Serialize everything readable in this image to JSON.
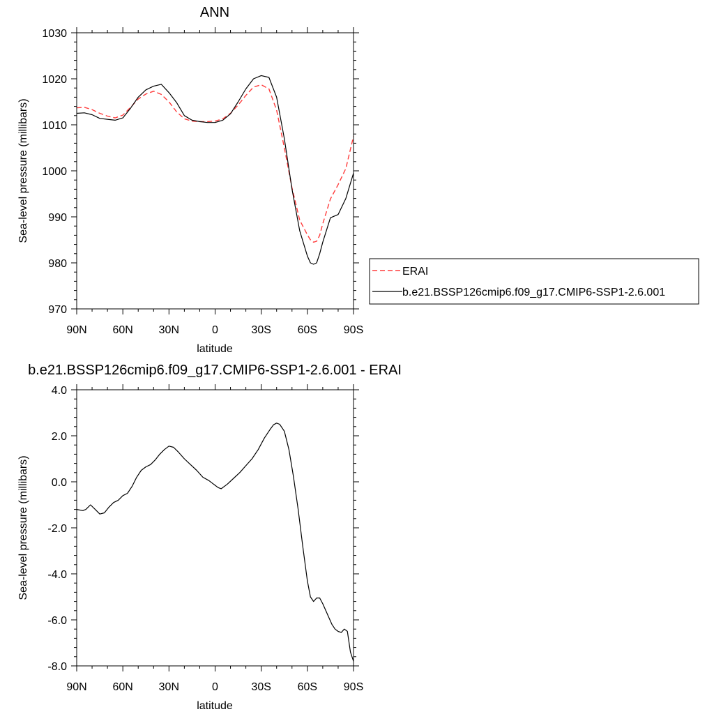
{
  "chart_data": [
    {
      "type": "line",
      "title": "ANN",
      "xlabel": "latitude",
      "ylabel": "Sea-level pressure (millibars)",
      "xlim": [
        90,
        -90
      ],
      "ylim": [
        970,
        1030
      ],
      "xticks": [
        90,
        60,
        30,
        0,
        -30,
        -60,
        -90
      ],
      "xtick_labels": [
        "90N",
        "60N",
        "30N",
        "0",
        "30S",
        "60S",
        "90S"
      ],
      "yticks": [
        970,
        980,
        990,
        1000,
        1010,
        1020,
        1030
      ],
      "ytick_labels": [
        "970",
        "980",
        "990",
        "1000",
        "1010",
        "1020",
        "1030"
      ],
      "legend_position": "right",
      "series": [
        {
          "name": "ERAI",
          "color": "#ff3b3b",
          "dash": "dashed",
          "x": [
            90,
            85,
            80,
            75,
            70,
            65,
            60,
            55,
            50,
            45,
            40,
            35,
            30,
            25,
            20,
            15,
            10,
            5,
            0,
            -5,
            -10,
            -15,
            -20,
            -25,
            -30,
            -35,
            -40,
            -45,
            -50,
            -55,
            -60,
            -62,
            -64,
            -66,
            -68,
            -70,
            -75,
            -80,
            -85,
            -90
          ],
          "values": [
            1013.7,
            1013.8,
            1013.3,
            1012.5,
            1011.9,
            1011.5,
            1012.1,
            1013.8,
            1015.6,
            1016.7,
            1017.3,
            1016.6,
            1015.0,
            1012.8,
            1011.3,
            1010.8,
            1010.7,
            1010.7,
            1010.8,
            1011.3,
            1012.5,
            1014.3,
            1016.4,
            1018.2,
            1018.7,
            1017.8,
            1013.2,
            1005.0,
            996.3,
            989.3,
            986.1,
            985.0,
            984.5,
            984.7,
            986.0,
            988.5,
            993.9,
            997.0,
            1000.5,
            1007.5
          ]
        },
        {
          "name": "b.e21.BSSP126cmip6.f09_g17.CMIP6-SSP1-2.6.001",
          "color": "#000000",
          "dash": "solid",
          "x": [
            90,
            85,
            80,
            75,
            70,
            65,
            60,
            55,
            50,
            45,
            40,
            35,
            30,
            25,
            20,
            15,
            10,
            5,
            0,
            -5,
            -10,
            -15,
            -20,
            -25,
            -30,
            -35,
            -40,
            -45,
            -50,
            -55,
            -60,
            -62,
            -64,
            -66,
            -68,
            -70,
            -75,
            -80,
            -85,
            -90
          ],
          "values": [
            1012.5,
            1012.6,
            1012.2,
            1011.4,
            1011.2,
            1011.0,
            1011.5,
            1013.6,
            1016.0,
            1017.6,
            1018.4,
            1018.8,
            1017.0,
            1014.8,
            1012.0,
            1011.0,
            1010.7,
            1010.5,
            1010.5,
            1011.0,
            1012.4,
            1015.0,
            1017.8,
            1020.0,
            1020.7,
            1020.3,
            1016.0,
            1007.0,
            996.0,
            987.0,
            981.5,
            980.0,
            979.7,
            980.0,
            982.0,
            984.5,
            989.8,
            990.5,
            994.0,
            999.5
          ]
        }
      ]
    },
    {
      "type": "line",
      "title": "b.e21.BSSP126cmip6.f09_g17.CMIP6-SSP1-2.6.001 - ERAI",
      "xlabel": "latitude",
      "ylabel": "Sea-level pressure (millibars)",
      "xlim": [
        90,
        -90
      ],
      "ylim": [
        -8.0,
        4.0
      ],
      "xticks": [
        90,
        60,
        30,
        0,
        -30,
        -60,
        -90
      ],
      "xtick_labels": [
        "90N",
        "60N",
        "30N",
        "0",
        "30S",
        "60S",
        "90S"
      ],
      "yticks": [
        -8,
        -6,
        -4,
        -2,
        0,
        2,
        4
      ],
      "ytick_labels": [
        "-8.0",
        "-6.0",
        "-4.0",
        "-2.0",
        "0.0",
        "2.0",
        "4.0"
      ],
      "series": [
        {
          "name": "b.e21.BSSP126cmip6.f09_g17.CMIP6-SSP1-2.6.001 - ERAI",
          "color": "#000000",
          "dash": "solid",
          "x": [
            90,
            86,
            84,
            81,
            78,
            75,
            72,
            69,
            66,
            63,
            60,
            57,
            54,
            51,
            48,
            45,
            42,
            39,
            36,
            33,
            30,
            27,
            24,
            20,
            16,
            12,
            8,
            4,
            2,
            0,
            -2,
            -4,
            -8,
            -12,
            -16,
            -20,
            -24,
            -28,
            -32,
            -36,
            -38,
            -40,
            -42,
            -45,
            -48,
            -51,
            -54,
            -57,
            -60,
            -62,
            -64,
            -66,
            -68,
            -70,
            -72,
            -74,
            -76,
            -78,
            -80,
            -82,
            -84,
            -86,
            -88,
            -90
          ],
          "values": [
            -1.2,
            -1.25,
            -1.2,
            -1.0,
            -1.2,
            -1.4,
            -1.35,
            -1.1,
            -0.9,
            -0.8,
            -0.6,
            -0.5,
            -0.2,
            0.2,
            0.5,
            0.65,
            0.75,
            0.95,
            1.2,
            1.4,
            1.55,
            1.5,
            1.3,
            1.0,
            0.75,
            0.5,
            0.2,
            0.05,
            -0.05,
            -0.15,
            -0.25,
            -0.3,
            -0.1,
            0.15,
            0.4,
            0.7,
            1.0,
            1.4,
            1.9,
            2.3,
            2.48,
            2.55,
            2.5,
            2.2,
            1.4,
            0.2,
            -1.2,
            -2.8,
            -4.3,
            -5.0,
            -5.2,
            -5.05,
            -5.05,
            -5.3,
            -5.6,
            -5.9,
            -6.2,
            -6.4,
            -6.5,
            -6.55,
            -6.4,
            -6.5,
            -7.4,
            -7.8
          ]
        }
      ]
    }
  ]
}
